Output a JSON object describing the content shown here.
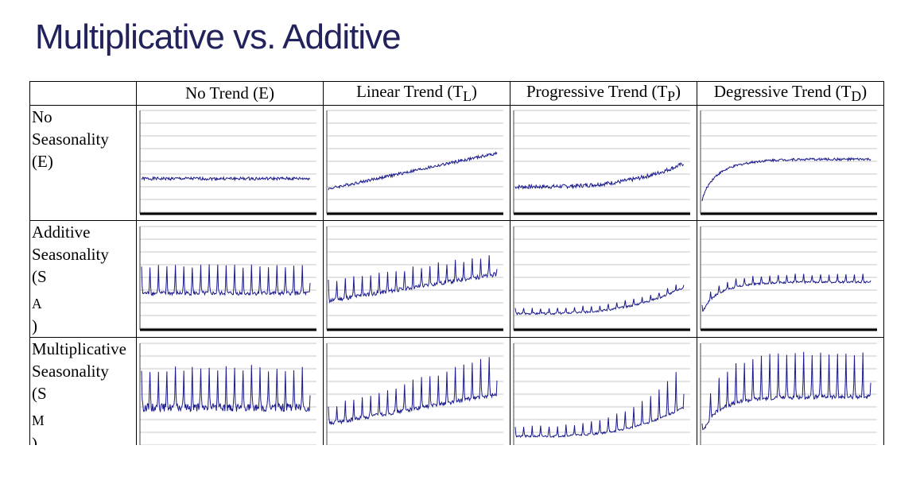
{
  "title": "Multiplicative vs. Additive",
  "columns": [
    {
      "label": "No Trend (E)",
      "sub": ""
    },
    {
      "label": "Linear Trend (T",
      "sub": "L",
      "end": ")"
    },
    {
      "label": "Progressive Trend (T",
      "sub": "P",
      "end": ")"
    },
    {
      "label": "Degressive Trend (T",
      "sub": "D",
      "end": ")"
    }
  ],
  "rows": [
    {
      "lines": [
        "No",
        "Seasonality",
        "(E)"
      ]
    },
    {
      "lines": [
        "Additive",
        "Seasonality",
        "(S",
        "A",
        ")"
      ]
    },
    {
      "lines": [
        "Multiplicative",
        "Seasonality",
        "(S",
        "M",
        ")"
      ]
    }
  ],
  "line_color": "#1a1a8c",
  "chart_data": {
    "type": "line",
    "layout": "3x4 grid of small line charts",
    "trend_types": [
      "none",
      "linear",
      "progressive",
      "degressive"
    ],
    "seasonality_types": [
      "none",
      "additive",
      "multiplicative"
    ],
    "panels": [
      {
        "row": 0,
        "col": 0,
        "seasonality": "none",
        "trend": "none",
        "level": [
          0.33,
          0.33
        ],
        "season_amp": 0,
        "noise": 0.015
      },
      {
        "row": 0,
        "col": 1,
        "seasonality": "none",
        "trend": "linear",
        "level": [
          0.23,
          0.58
        ],
        "season_amp": 0,
        "noise": 0.015
      },
      {
        "row": 0,
        "col": 2,
        "seasonality": "none",
        "trend": "progressive",
        "level": [
          0.25,
          0.48
        ],
        "season_amp": 0,
        "noise": 0.02
      },
      {
        "row": 0,
        "col": 3,
        "seasonality": "none",
        "trend": "degressive",
        "level": [
          0.12,
          0.52
        ],
        "season_amp": 0,
        "noise": 0.012
      },
      {
        "row": 1,
        "col": 0,
        "seasonality": "additive",
        "trend": "none",
        "level": [
          0.33,
          0.33
        ],
        "season_amp": 0.28,
        "noise": 0.02
      },
      {
        "row": 1,
        "col": 1,
        "seasonality": "additive",
        "trend": "linear",
        "level": [
          0.26,
          0.52
        ],
        "season_amp": 0.2,
        "noise": 0.02
      },
      {
        "row": 1,
        "col": 2,
        "seasonality": "additive",
        "trend": "progressive",
        "level": [
          0.14,
          0.4
        ],
        "season_amp": 0.06,
        "noise": 0.01
      },
      {
        "row": 1,
        "col": 3,
        "seasonality": "additive",
        "trend": "degressive",
        "level": [
          0.14,
          0.45
        ],
        "season_amp": 0.08,
        "noise": 0.01
      },
      {
        "row": 2,
        "col": 0,
        "seasonality": "multiplicative",
        "trend": "none",
        "level": [
          0.35,
          0.35
        ],
        "season_amp": 0.4,
        "noise": 0.04
      },
      {
        "row": 2,
        "col": 1,
        "seasonality": "multiplicative",
        "trend": "linear",
        "level": [
          0.2,
          0.48
        ],
        "season_amp": 0.4,
        "noise": 0.02
      },
      {
        "row": 2,
        "col": 2,
        "seasonality": "multiplicative",
        "trend": "progressive",
        "level": [
          0.08,
          0.35
        ],
        "season_amp": 0.45,
        "noise": 0.01
      },
      {
        "row": 2,
        "col": 3,
        "seasonality": "multiplicative",
        "trend": "degressive",
        "level": [
          0.1,
          0.45
        ],
        "season_amp": 0.45,
        "noise": 0.02
      }
    ]
  }
}
